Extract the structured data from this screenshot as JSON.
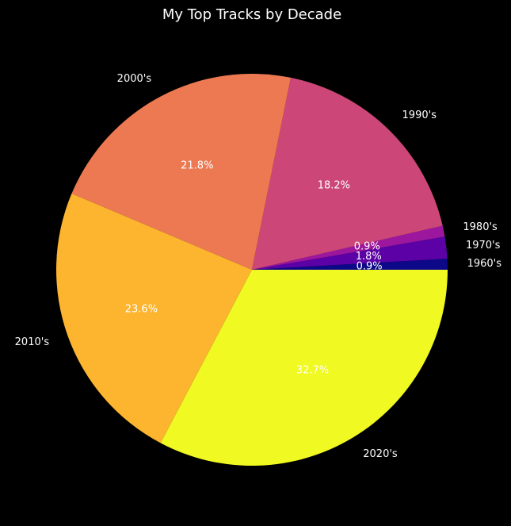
{
  "chart_data": {
    "type": "pie",
    "title": "My Top Tracks by Decade",
    "categories": [
      "1960's",
      "1970's",
      "1980's",
      "1990's",
      "2000's",
      "2010's",
      "2020's"
    ],
    "values": [
      0.9,
      1.8,
      0.9,
      18.2,
      21.8,
      23.6,
      32.7
    ],
    "percent_labels": [
      "0.9%",
      "1.8%",
      "0.9%",
      "18.2%",
      "21.8%",
      "23.6%",
      "32.7%"
    ],
    "colors": [
      "#0d0887",
      "#5c01a6",
      "#9c179e",
      "#cc4778",
      "#ed7953",
      "#fdb42f",
      "#f0f921"
    ],
    "start_angle_deg": 0,
    "direction": "counterclockwise",
    "background": "#000000"
  }
}
